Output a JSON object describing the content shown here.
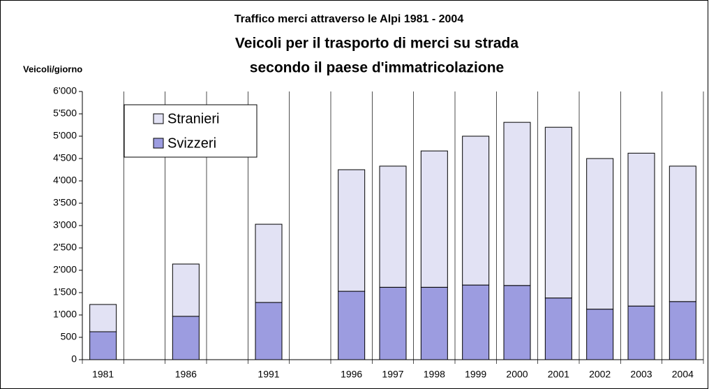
{
  "chart_data": {
    "type": "stacked_bar",
    "title": "Traffico merci attraverso le Alpi 1981 - 2004",
    "subtitle": [
      "Veicoli per il trasporto di merci su strada",
      "secondo il paese d'immatricolazione"
    ],
    "y_label": "Veicoli/giorno",
    "categories": [
      "1981",
      null,
      "1986",
      null,
      "1991",
      null,
      "1996",
      "1997",
      "1998",
      "1999",
      "2000",
      "2001",
      "2002",
      "2003",
      "2004"
    ],
    "series": [
      {
        "name": "Svizzeri",
        "color": "#9c9ce0",
        "values": [
          625,
          null,
          970,
          null,
          1280,
          null,
          1530,
          1620,
          1620,
          1670,
          1660,
          1380,
          1130,
          1200,
          1300
        ]
      },
      {
        "name": "Stranieri",
        "color": "#e2e2f4",
        "values": [
          610,
          null,
          1170,
          null,
          1750,
          null,
          2720,
          2710,
          3050,
          3330,
          3650,
          3820,
          3370,
          3420,
          3030
        ]
      }
    ],
    "ylim": [
      0,
      6000
    ],
    "yticks": [
      0,
      500,
      {
        "value": 1000,
        "label": "1'000"
      },
      {
        "value": 1500,
        "label": "1'500"
      },
      {
        "value": 2000,
        "label": "2'000"
      },
      {
        "value": 2500,
        "label": "2'500"
      },
      {
        "value": 3000,
        "label": "3'000"
      },
      {
        "value": 3500,
        "label": "3'500"
      },
      {
        "value": 4000,
        "label": "4'000"
      },
      {
        "value": 4500,
        "label": "4'500"
      },
      {
        "value": 5000,
        "label": "5'000"
      },
      {
        "value": 5500,
        "label": "5'500"
      },
      {
        "value": 6000,
        "label": "6'000"
      }
    ],
    "legend": "upper left"
  }
}
